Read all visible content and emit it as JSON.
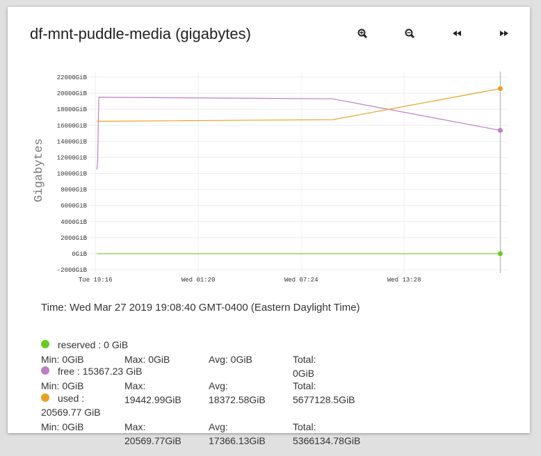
{
  "chart_data": {
    "type": "line",
    "title": "df-mnt-puddle-media (gigabytes)",
    "ylabel": "Gigabytes",
    "xlim": [
      "Tue 18:46",
      "Wed 19:34"
    ],
    "xticks": [
      "Tue 19:16",
      "Wed 01:20",
      "Wed 07:24",
      "Wed 13:28"
    ],
    "ylim": [
      -2000,
      22000
    ],
    "yticks": [
      {
        "value": -2000,
        "label": "-2000GiB"
      },
      {
        "value": 0,
        "label": "0GiB"
      },
      {
        "value": 2000,
        "label": "2000GiB"
      },
      {
        "value": 4000,
        "label": "4000GiB"
      },
      {
        "value": 6000,
        "label": "6000GiB"
      },
      {
        "value": 8000,
        "label": "8000GiB"
      },
      {
        "value": 10000,
        "label": "10000GiB"
      },
      {
        "value": 12000,
        "label": "12000GiB"
      },
      {
        "value": 14000,
        "label": "14000GiB"
      },
      {
        "value": 16000,
        "label": "16000GiB"
      },
      {
        "value": 18000,
        "label": "18000GiB"
      },
      {
        "value": 20000,
        "label": "20000GiB"
      },
      {
        "value": 22000,
        "label": "22000GiB"
      }
    ],
    "grid": true,
    "series": [
      {
        "name": "reserved",
        "color": "#66cc22",
        "x": [
          "Tue 19:21",
          "Wed 19:08"
        ],
        "values": [
          0,
          0
        ]
      },
      {
        "name": "free",
        "color": "#c07cc8",
        "x": [
          "Tue 19:21",
          "Tue 19:24",
          "Tue 19:28",
          "Wed 09:15",
          "Wed 19:08"
        ],
        "values": [
          10500,
          11500,
          19500,
          19300,
          15367.23
        ]
      },
      {
        "name": "used",
        "color": "#e8a020",
        "x": [
          "Tue 19:21",
          "Wed 09:15",
          "Wed 19:08"
        ],
        "values": [
          16500,
          16700,
          20569.77
        ]
      }
    ]
  },
  "time_label": "Time: Wed Mar 27 2019 19:08:40 GMT-0400 (Eastern Daylight Time)",
  "legend": {
    "items": [
      {
        "current": ": 0 GiB",
        "min": [
          "Min:",
          "0GiB"
        ],
        "max": [
          "Max:",
          "0GiB"
        ],
        "avg": [
          "Avg:",
          "0GiB"
        ],
        "total": [
          "Total:",
          "0GiB"
        ]
      },
      {
        "current": ": 15367.23 GiB",
        "min": [
          "Min:",
          "0GiB"
        ],
        "max": [
          "Max:",
          "19442.99GiB"
        ],
        "avg": [
          "Avg:",
          "18372.58GiB"
        ],
        "total": [
          "Total:",
          "5677128.5GiB"
        ]
      },
      {
        "current": ": 20569.77 GiB",
        "min": [
          "Min:",
          "0GiB"
        ],
        "max": [
          "Max:",
          "20569.77GiB"
        ],
        "avg": [
          "Avg:",
          "17366.13GiB"
        ],
        "total": [
          "Total:",
          "5366134.78GiB"
        ]
      }
    ]
  }
}
